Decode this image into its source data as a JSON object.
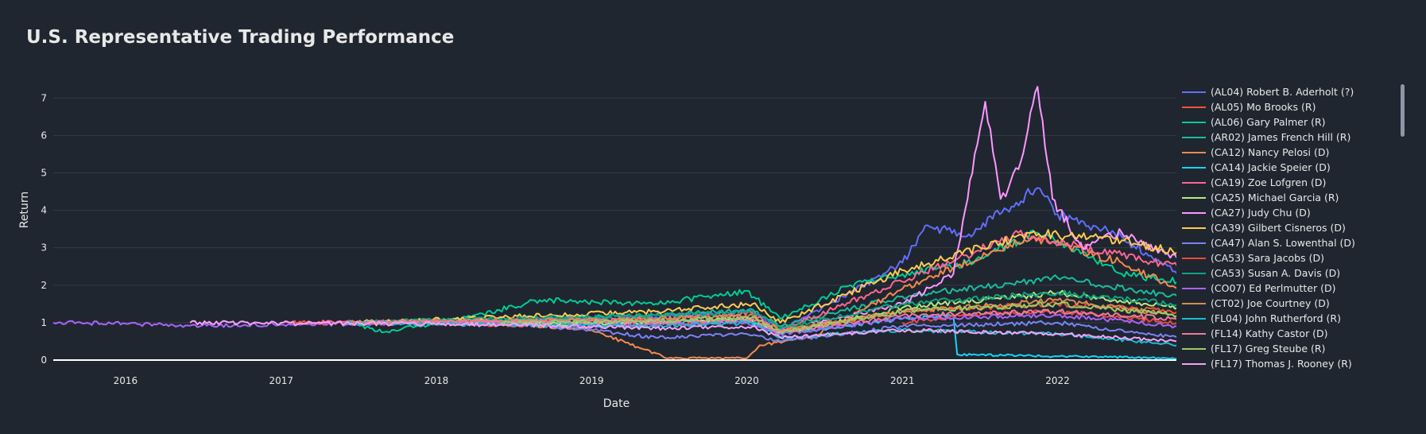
{
  "page": {
    "background": "#1f2630",
    "grid_color": "#343b47",
    "text_color": "#e8e8e8"
  },
  "chart_data": {
    "type": "line",
    "title": "U.S. Representative Trading Performance",
    "xlabel": "Date",
    "ylabel": "Return",
    "x_range": [
      "2015-07-15",
      "2022-10-15"
    ],
    "ylim": [
      0,
      7.6
    ],
    "x_ticks": [
      "2016",
      "2017",
      "2018",
      "2019",
      "2020",
      "2021",
      "2022"
    ],
    "y_ticks": [
      0,
      1,
      2,
      3,
      4,
      5,
      6,
      7
    ],
    "grid": true,
    "legend_position": "right",
    "series": [
      {
        "name": "(AL04) Robert B. Aderholt (?)",
        "color": "#636efa",
        "points": [
          [
            "2017-06-01",
            1.0
          ],
          [
            "2018-06-01",
            1.05
          ],
          [
            "2019-06-01",
            1.15
          ],
          [
            "2020-01-15",
            1.3
          ],
          [
            "2020-03-20",
            0.8
          ],
          [
            "2020-09-01",
            1.8
          ],
          [
            "2021-01-01",
            2.6
          ],
          [
            "2021-03-01",
            3.6
          ],
          [
            "2021-06-01",
            3.3
          ],
          [
            "2021-11-15",
            4.6
          ],
          [
            "2022-01-01",
            3.9
          ],
          [
            "2022-06-01",
            3.3
          ],
          [
            "2022-10-10",
            2.3
          ]
        ]
      },
      {
        "name": "(AL05) Mo Brooks (R)",
        "color": "#ef553b",
        "points": [
          [
            "2017-01-10",
            1.0
          ],
          [
            "2018-01-01",
            0.98
          ],
          [
            "2019-01-01",
            0.9
          ],
          [
            "2020-01-01",
            1.05
          ],
          [
            "2020-03-20",
            0.75
          ],
          [
            "2021-01-01",
            1.3
          ],
          [
            "2022-01-01",
            1.5
          ],
          [
            "2022-10-10",
            1.3
          ]
        ]
      },
      {
        "name": "(AL06) Gary Palmer (R)",
        "color": "#00cc96",
        "points": [
          [
            "2017-06-01",
            1.0
          ],
          [
            "2017-09-01",
            0.75
          ],
          [
            "2018-03-01",
            1.1
          ],
          [
            "2018-09-01",
            1.6
          ],
          [
            "2019-06-01",
            1.5
          ],
          [
            "2020-01-01",
            1.85
          ],
          [
            "2020-03-20",
            1.1
          ],
          [
            "2020-09-01",
            2.0
          ],
          [
            "2021-06-01",
            2.6
          ],
          [
            "2021-11-15",
            3.4
          ],
          [
            "2022-06-01",
            2.3
          ],
          [
            "2022-10-10",
            2.1
          ]
        ]
      },
      {
        "name": "(AR02) James French Hill (R)",
        "color": "#1abc9c",
        "points": [
          [
            "2017-09-01",
            1.0
          ],
          [
            "2018-06-01",
            1.1
          ],
          [
            "2019-06-01",
            1.2
          ],
          [
            "2020-01-15",
            1.35
          ],
          [
            "2020-03-20",
            0.9
          ],
          [
            "2021-01-01",
            1.7
          ],
          [
            "2022-01-01",
            2.2
          ],
          [
            "2022-10-10",
            1.7
          ]
        ]
      },
      {
        "name": "(CA12) Nancy Pelosi (D)",
        "color": "#f58a4c",
        "points": [
          [
            "2017-06-01",
            1.0
          ],
          [
            "2018-06-01",
            1.0
          ],
          [
            "2019-01-01",
            0.8
          ],
          [
            "2019-05-01",
            0.3
          ],
          [
            "2019-07-01",
            0.05
          ],
          [
            "2020-01-01",
            0.05
          ],
          [
            "2020-02-01",
            0.4
          ],
          [
            "2020-06-01",
            0.6
          ],
          [
            "2021-01-01",
            1.9
          ],
          [
            "2021-11-01",
            3.3
          ],
          [
            "2022-06-01",
            2.6
          ],
          [
            "2022-10-10",
            1.9
          ]
        ]
      },
      {
        "name": "(CA14) Jackie Speier (D)",
        "color": "#19d3f3",
        "points": [
          [
            "2018-01-01",
            1.0
          ],
          [
            "2019-01-01",
            1.0
          ],
          [
            "2020-01-01",
            1.05
          ],
          [
            "2020-03-20",
            0.7
          ],
          [
            "2021-01-01",
            1.1
          ],
          [
            "2021-05-01",
            1.2
          ],
          [
            "2021-05-10",
            0.15
          ],
          [
            "2022-01-01",
            0.1
          ],
          [
            "2022-10-10",
            0.05
          ]
        ]
      },
      {
        "name": "(CA19) Zoe Lofgren (D)",
        "color": "#ff6692",
        "points": [
          [
            "2017-03-01",
            1.0
          ],
          [
            "2018-06-01",
            1.05
          ],
          [
            "2019-06-01",
            1.1
          ],
          [
            "2020-01-15",
            1.25
          ],
          [
            "2020-03-20",
            0.8
          ],
          [
            "2021-06-01",
            2.8
          ],
          [
            "2021-10-01",
            3.4
          ],
          [
            "2022-06-01",
            2.8
          ],
          [
            "2022-10-10",
            2.5
          ]
        ]
      },
      {
        "name": "(CA25) Michael Garcia (R)",
        "color": "#b6e880",
        "points": [
          [
            "2018-01-01",
            1.0
          ],
          [
            "2019-01-01",
            0.95
          ],
          [
            "2020-01-01",
            1.1
          ],
          [
            "2020-03-20",
            0.7
          ],
          [
            "2021-01-01",
            1.4
          ],
          [
            "2022-01-01",
            1.8
          ],
          [
            "2022-10-10",
            1.4
          ]
        ]
      },
      {
        "name": "(CA27) Judy Chu (D)",
        "color": "#ff97ff",
        "points": [
          [
            "2020-06-01",
            1.0
          ],
          [
            "2021-01-01",
            1.5
          ],
          [
            "2021-05-01",
            2.3
          ],
          [
            "2021-06-20",
            5.5
          ],
          [
            "2021-07-15",
            6.9
          ],
          [
            "2021-08-20",
            4.3
          ],
          [
            "2021-10-01",
            5.1
          ],
          [
            "2021-11-15",
            7.3
          ],
          [
            "2021-12-20",
            4.3
          ],
          [
            "2022-03-01",
            3.0
          ],
          [
            "2022-06-01",
            3.4
          ],
          [
            "2022-10-10",
            2.7
          ]
        ]
      },
      {
        "name": "(CA39) Gilbert Cisneros (D)",
        "color": "#fecb52",
        "points": [
          [
            "2017-06-01",
            1.0
          ],
          [
            "2018-06-01",
            1.15
          ],
          [
            "2019-06-01",
            1.3
          ],
          [
            "2020-01-15",
            1.5
          ],
          [
            "2020-03-20",
            1.0
          ],
          [
            "2021-01-01",
            2.4
          ],
          [
            "2021-11-01",
            3.4
          ],
          [
            "2022-06-01",
            3.2
          ],
          [
            "2022-10-10",
            2.9
          ]
        ]
      },
      {
        "name": "(CA47) Alan S. Lowenthal (D)",
        "color": "#7b83f7",
        "points": [
          [
            "2017-06-01",
            1.0
          ],
          [
            "2018-06-01",
            1.0
          ],
          [
            "2019-01-01",
            0.8
          ],
          [
            "2019-06-01",
            0.6
          ],
          [
            "2020-01-01",
            0.7
          ],
          [
            "2020-03-20",
            0.5
          ],
          [
            "2021-01-01",
            0.9
          ],
          [
            "2022-01-01",
            1.0
          ],
          [
            "2022-10-10",
            0.6
          ]
        ]
      },
      {
        "name": "(CA53) Sara Jacobs (D)",
        "color": "#e74c3c",
        "points": [
          [
            "2021-01-01",
            1.0
          ],
          [
            "2021-06-01",
            1.2
          ],
          [
            "2022-01-01",
            1.3
          ],
          [
            "2022-10-10",
            1.0
          ]
        ]
      },
      {
        "name": "(CA53) Susan A. Davis (D)",
        "color": "#0fa37f",
        "points": [
          [
            "2017-06-01",
            1.0
          ],
          [
            "2018-06-01",
            1.1
          ],
          [
            "2019-06-01",
            1.2
          ],
          [
            "2020-01-15",
            1.3
          ],
          [
            "2020-03-20",
            0.85
          ],
          [
            "2021-01-01",
            1.5
          ],
          [
            "2022-01-01",
            1.8
          ],
          [
            "2022-10-10",
            1.5
          ]
        ]
      },
      {
        "name": "(CO07) Ed Perlmutter (D)",
        "color": "#ab63fa",
        "points": [
          [
            "2015-07-15",
            1.0
          ],
          [
            "2016-01-01",
            0.97
          ],
          [
            "2016-06-01",
            0.92
          ],
          [
            "2017-01-01",
            0.95
          ],
          [
            "2018-01-01",
            1.0
          ],
          [
            "2019-01-01",
            0.9
          ],
          [
            "2020-01-01",
            1.0
          ],
          [
            "2020-03-20",
            0.7
          ],
          [
            "2021-01-01",
            1.1
          ],
          [
            "2022-01-01",
            1.2
          ],
          [
            "2022-10-10",
            0.9
          ]
        ]
      },
      {
        "name": "(CT02) Joe Courtney (D)",
        "color": "#d98c4f",
        "points": [
          [
            "2017-06-01",
            1.0
          ],
          [
            "2018-06-01",
            1.05
          ],
          [
            "2019-06-01",
            1.1
          ],
          [
            "2020-01-15",
            1.2
          ],
          [
            "2020-03-20",
            0.8
          ],
          [
            "2021-01-01",
            1.3
          ],
          [
            "2022-01-01",
            1.6
          ],
          [
            "2022-10-10",
            1.2
          ]
        ]
      },
      {
        "name": "(FL04) John Rutherford (R)",
        "color": "#17becf",
        "points": [
          [
            "2017-06-01",
            1.0
          ],
          [
            "2018-06-01",
            0.95
          ],
          [
            "2019-06-01",
            0.9
          ],
          [
            "2020-01-15",
            1.0
          ],
          [
            "2020-03-20",
            0.6
          ],
          [
            "2021-01-01",
            0.8
          ],
          [
            "2022-01-01",
            0.7
          ],
          [
            "2022-10-10",
            0.4
          ]
        ]
      },
      {
        "name": "(FL14) Kathy Castor (D)",
        "color": "#ef7a9c",
        "points": [
          [
            "2017-06-01",
            1.0
          ],
          [
            "2018-06-01",
            1.05
          ],
          [
            "2019-06-01",
            1.0
          ],
          [
            "2020-01-15",
            1.1
          ],
          [
            "2020-03-20",
            0.75
          ],
          [
            "2021-01-01",
            1.2
          ],
          [
            "2022-01-01",
            1.3
          ],
          [
            "2022-10-10",
            1.1
          ]
        ]
      },
      {
        "name": "(FL17) Greg Steube (R)",
        "color": "#9ccc65",
        "points": [
          [
            "2018-06-01",
            1.0
          ],
          [
            "2019-06-01",
            1.05
          ],
          [
            "2020-01-15",
            1.15
          ],
          [
            "2020-03-20",
            0.75
          ],
          [
            "2021-01-01",
            1.3
          ],
          [
            "2022-01-01",
            1.5
          ],
          [
            "2022-10-10",
            1.2
          ]
        ]
      },
      {
        "name": "(FL17) Thomas J. Rooney (R)",
        "color": "#f7a1f5",
        "points": [
          [
            "2016-06-01",
            1.0
          ],
          [
            "2017-06-01",
            0.98
          ],
          [
            "2018-06-01",
            0.95
          ],
          [
            "2019-06-01",
            0.85
          ],
          [
            "2020-01-15",
            0.9
          ],
          [
            "2020-03-20",
            0.6
          ],
          [
            "2021-01-01",
            0.8
          ],
          [
            "2022-01-01",
            0.7
          ],
          [
            "2022-10-10",
            0.5
          ]
        ]
      }
    ]
  }
}
